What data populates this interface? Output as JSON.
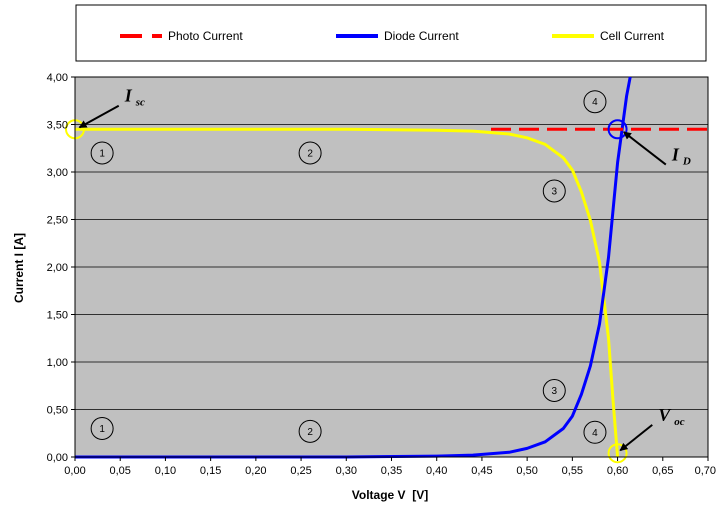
{
  "chart_data": {
    "type": "line",
    "xlabel": "Voltage V  [V]",
    "ylabel": "Current I [A]",
    "xlim": [
      0,
      0.7
    ],
    "ylim": [
      0,
      4
    ],
    "x_ticks": [
      "0,00",
      "0,05",
      "0,10",
      "0,15",
      "0,20",
      "0,25",
      "0,30",
      "0,35",
      "0,40",
      "0,45",
      "0,50",
      "0,55",
      "0,60",
      "0,65",
      "0,70"
    ],
    "y_ticks": [
      "0,00",
      "0,50",
      "1,00",
      "1,50",
      "2,00",
      "2,50",
      "3,00",
      "3,50",
      "4,00"
    ],
    "grid": "horizontal",
    "legend_position": "top",
    "background": "#c0c0c0",
    "series": [
      {
        "name": "Photo Current",
        "color": "#ff0000",
        "style": "dashed",
        "x": [
          0.46,
          0.7
        ],
        "y": [
          3.45,
          3.45
        ]
      },
      {
        "name": "Diode Current",
        "color": "#0000ff",
        "style": "solid",
        "x": [
          0.0,
          0.1,
          0.2,
          0.3,
          0.4,
          0.44,
          0.48,
          0.5,
          0.52,
          0.54,
          0.55,
          0.56,
          0.57,
          0.58,
          0.59,
          0.6,
          0.61,
          0.614
        ],
        "y": [
          0.0,
          0.0,
          0.0,
          0.0,
          0.01,
          0.02,
          0.05,
          0.09,
          0.16,
          0.3,
          0.43,
          0.66,
          0.96,
          1.4,
          2.1,
          3.1,
          3.8,
          4.0
        ]
      },
      {
        "name": "Cell Current",
        "color": "#ffff00",
        "style": "solid",
        "x": [
          0.0,
          0.1,
          0.2,
          0.3,
          0.4,
          0.44,
          0.48,
          0.5,
          0.52,
          0.54,
          0.55,
          0.56,
          0.57,
          0.58,
          0.59,
          0.595,
          0.6
        ],
        "y": [
          3.45,
          3.45,
          3.45,
          3.45,
          3.44,
          3.43,
          3.4,
          3.36,
          3.29,
          3.15,
          3.02,
          2.79,
          2.49,
          2.05,
          1.25,
          0.6,
          0.0
        ]
      }
    ],
    "markers": [
      {
        "label": "1",
        "x": 0.03,
        "y": 3.2
      },
      {
        "label": "2",
        "x": 0.26,
        "y": 3.2
      },
      {
        "label": "3",
        "x": 0.53,
        "y": 2.8
      },
      {
        "label": "4",
        "x": 0.575,
        "y": 3.74
      },
      {
        "label": "1",
        "x": 0.03,
        "y": 0.3
      },
      {
        "label": "2",
        "x": 0.26,
        "y": 0.27
      },
      {
        "label": "3",
        "x": 0.53,
        "y": 0.7
      },
      {
        "label": "4",
        "x": 0.575,
        "y": 0.26
      }
    ],
    "points": [
      {
        "name": "Isc",
        "x": 0.0,
        "y": 3.45,
        "color": "#ffff00"
      },
      {
        "name": "ID",
        "x": 0.6,
        "y": 3.45,
        "color": "#0000ff"
      },
      {
        "name": "Voc",
        "x": 0.6,
        "y": 0.04,
        "color": "#ffff00"
      }
    ],
    "annotations": [
      {
        "name": "Isc",
        "main": "I",
        "sub": "sc",
        "x": 0.055,
        "y": 3.74,
        "target_x": 0.005,
        "target_y": 3.47
      },
      {
        "name": "ID",
        "main": "I",
        "sub": "D",
        "x": 0.66,
        "y": 3.12,
        "target_x": 0.607,
        "target_y": 3.42
      },
      {
        "name": "Voc",
        "main": "V",
        "sub": "oc",
        "x": 0.645,
        "y": 0.38,
        "target_x": 0.603,
        "target_y": 0.07
      }
    ]
  }
}
